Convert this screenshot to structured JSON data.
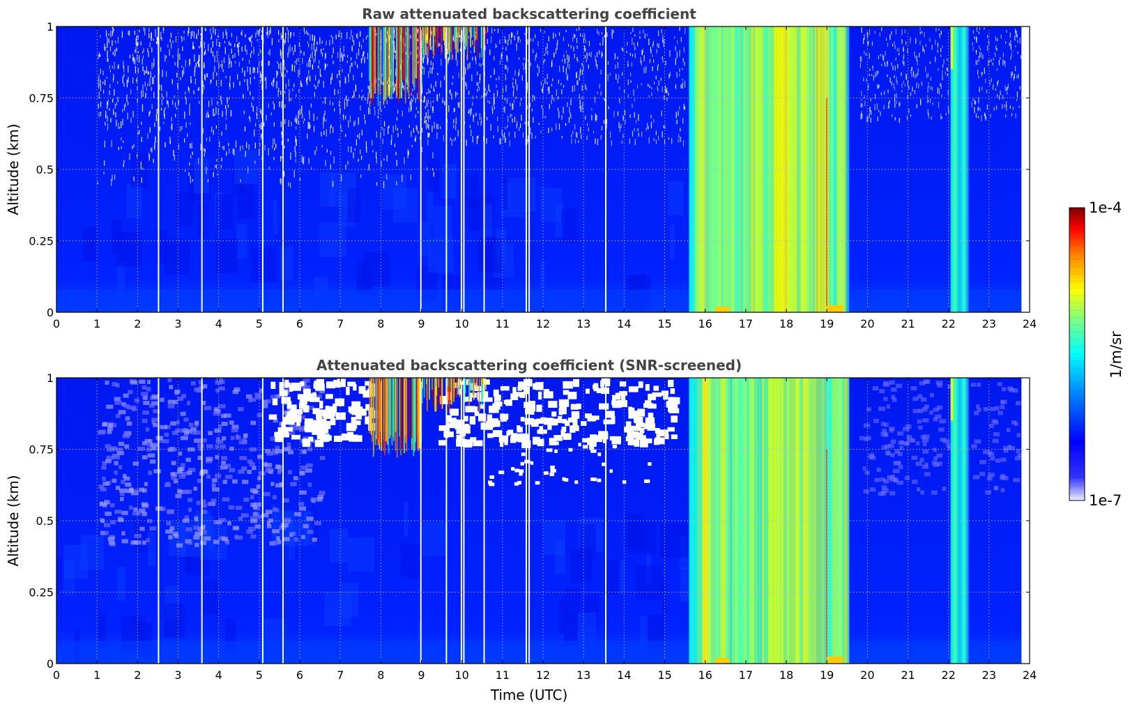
{
  "chart_data": [
    {
      "type": "heatmap",
      "title": "Raw attenuated backscattering coefficient",
      "xlabel": "",
      "ylabel": "Altitude (km)",
      "xlim": [
        0,
        24
      ],
      "ylim": [
        0,
        1
      ],
      "x_ticks": [
        "0",
        "1",
        "2",
        "3",
        "4",
        "5",
        "6",
        "7",
        "8",
        "9",
        "10",
        "11",
        "12",
        "13",
        "14",
        "15",
        "16",
        "17",
        "18",
        "19",
        "20",
        "21",
        "22",
        "23",
        "24"
      ],
      "y_ticks": [
        "0",
        "0.25",
        "0.5",
        "0.75",
        "1"
      ],
      "grid": true,
      "data_end_hour": 23.8,
      "data_gaps_hours": [
        2.5,
        3.57,
        5.07,
        5.57,
        8.97,
        9.6,
        9.97,
        10.03,
        10.53,
        11.57,
        11.64,
        13.53
      ],
      "regions": [
        {
          "x": [
            0,
            7.5
          ],
          "y": [
            0,
            0.45
          ],
          "level": "low (blue)"
        },
        {
          "x": [
            1,
            9
          ],
          "y": [
            0.45,
            1
          ],
          "level": "noise (white speckle)"
        },
        {
          "x": [
            7.8,
            10.6
          ],
          "y": [
            0.75,
            1
          ],
          "level": "high (red/yellow streaks)"
        },
        {
          "x": [
            15.6,
            19.55
          ],
          "y": [
            0,
            1
          ],
          "level": "medium-high (cyan/yellow)"
        },
        {
          "x": [
            22.05,
            22.5
          ],
          "y": [
            0,
            1
          ],
          "level": "medium (cyan)"
        }
      ]
    },
    {
      "type": "heatmap",
      "title": "Attenuated backscattering coefficient (SNR-screened)",
      "xlabel": "Time (UTC)",
      "ylabel": "Altitude (km)",
      "xlim": [
        0,
        24
      ],
      "ylim": [
        0,
        1
      ],
      "x_ticks": [
        "0",
        "1",
        "2",
        "3",
        "4",
        "5",
        "6",
        "7",
        "8",
        "9",
        "10",
        "11",
        "12",
        "13",
        "14",
        "15",
        "16",
        "17",
        "18",
        "19",
        "20",
        "21",
        "22",
        "23",
        "24"
      ],
      "y_ticks": [
        "0",
        "0.25",
        "0.5",
        "0.75",
        "1"
      ],
      "grid": true,
      "data_end_hour": 23.8,
      "data_gaps_hours": [
        2.5,
        3.57,
        5.07,
        5.57,
        8.97,
        9.6,
        9.97,
        10.03,
        10.53,
        11.57,
        11.64,
        13.53
      ],
      "regions": [
        {
          "x": [
            0,
            7.5
          ],
          "y": [
            0,
            0.45
          ],
          "level": "low (blue)"
        },
        {
          "x": [
            2.5,
            6
          ],
          "y": [
            0.45,
            1
          ],
          "level": "very low (light blue)"
        },
        {
          "x": [
            5.3,
            15.2
          ],
          "y": [
            0.75,
            1
          ],
          "level": "screened out (white)"
        },
        {
          "x": [
            7.8,
            10.6
          ],
          "y": [
            0.75,
            1
          ],
          "level": "high (red/yellow streaks)"
        },
        {
          "x": [
            15.6,
            19.55
          ],
          "y": [
            0,
            1
          ],
          "level": "medium-high (cyan/yellow)"
        },
        {
          "x": [
            22.05,
            22.5
          ],
          "y": [
            0,
            1
          ],
          "level": "medium (cyan)"
        }
      ]
    }
  ],
  "colorbar": {
    "label": "1/m/sr",
    "max_label": "1e-4",
    "min_label": "1e-7",
    "colormap": "jet",
    "colors": [
      "#eeeeff",
      "#0000ff",
      "#00ffff",
      "#ffff00",
      "#ff0000",
      "#7f0000"
    ]
  }
}
